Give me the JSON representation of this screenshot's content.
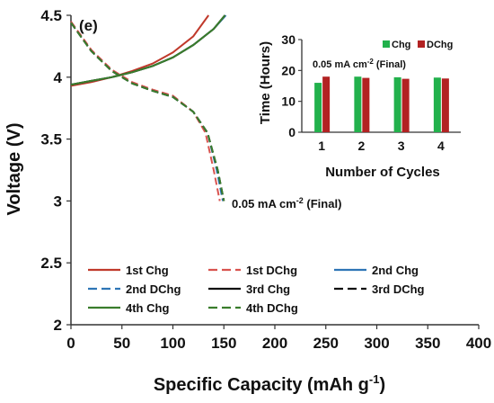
{
  "chart_data": [
    {
      "type": "line",
      "panel_label": "(e)",
      "xlabel": "Specific Capacity (mAh g",
      "xlabel_sup": "-1",
      "xlabel_end": ")",
      "ylabel": "Voltage  (V)",
      "xlim": [
        0,
        400
      ],
      "ylim": [
        2,
        4.5
      ],
      "x_ticks": [
        "0",
        "50",
        "100",
        "150",
        "200",
        "250",
        "300",
        "350",
        "400"
      ],
      "y_ticks": [
        "2",
        "2.5",
        "3",
        "3.5",
        "4",
        "4.5"
      ],
      "annotation": {
        "prefix": "0.05 mA cm",
        "sup": "-2",
        "suffix": " (Final)"
      },
      "grid": false,
      "legend_position": "bottom-left",
      "series": [
        {
          "name": "1st Chg",
          "color": "#c0392b",
          "dash": "solid",
          "points": [
            [
              0,
              3.93
            ],
            [
              20,
              3.96
            ],
            [
              40,
              4.0
            ],
            [
              60,
              4.05
            ],
            [
              80,
              4.11
            ],
            [
              100,
              4.2
            ],
            [
              120,
              4.33
            ],
            [
              135,
              4.5
            ]
          ]
        },
        {
          "name": "1st DChg",
          "color": "#d9534f",
          "dash": "dashed",
          "points": [
            [
              0,
              4.45
            ],
            [
              20,
              4.22
            ],
            [
              40,
              4.06
            ],
            [
              60,
              3.96
            ],
            [
              80,
              3.9
            ],
            [
              100,
              3.85
            ],
            [
              120,
              3.72
            ],
            [
              132,
              3.55
            ],
            [
              140,
              3.25
            ],
            [
              146,
              3.0
            ]
          ]
        },
        {
          "name": "2nd Chg",
          "color": "#2e75b6",
          "dash": "solid",
          "points": [
            [
              0,
              3.94
            ],
            [
              20,
              3.97
            ],
            [
              40,
              4.0
            ],
            [
              60,
              4.04
            ],
            [
              80,
              4.09
            ],
            [
              100,
              4.16
            ],
            [
              120,
              4.26
            ],
            [
              140,
              4.39
            ],
            [
              152,
              4.5
            ]
          ]
        },
        {
          "name": "2nd DChg",
          "color": "#2e75b6",
          "dash": "dashed",
          "points": [
            [
              0,
              4.44
            ],
            [
              20,
              4.21
            ],
            [
              40,
              4.05
            ],
            [
              60,
              3.95
            ],
            [
              80,
              3.89
            ],
            [
              100,
              3.84
            ],
            [
              120,
              3.72
            ],
            [
              134,
              3.55
            ],
            [
              143,
              3.25
            ],
            [
              149,
              3.0
            ]
          ]
        },
        {
          "name": "3rd Chg",
          "color": "#111111",
          "dash": "solid",
          "points": [
            [
              0,
              3.94
            ],
            [
              20,
              3.97
            ],
            [
              40,
              4.0
            ],
            [
              60,
              4.04
            ],
            [
              80,
              4.09
            ],
            [
              100,
              4.16
            ],
            [
              120,
              4.26
            ],
            [
              140,
              4.39
            ],
            [
              151,
              4.5
            ]
          ]
        },
        {
          "name": "3rd DChg",
          "color": "#111111",
          "dash": "dashed",
          "points": [
            [
              0,
              4.44
            ],
            [
              20,
              4.21
            ],
            [
              40,
              4.05
            ],
            [
              60,
              3.95
            ],
            [
              80,
              3.89
            ],
            [
              100,
              3.84
            ],
            [
              120,
              3.72
            ],
            [
              134,
              3.55
            ],
            [
              144,
              3.25
            ],
            [
              150,
              3.0
            ]
          ]
        },
        {
          "name": "4th Chg",
          "color": "#3a7d2c",
          "dash": "solid",
          "points": [
            [
              0,
              3.94
            ],
            [
              20,
              3.97
            ],
            [
              40,
              4.0
            ],
            [
              60,
              4.04
            ],
            [
              80,
              4.09
            ],
            [
              100,
              4.16
            ],
            [
              120,
              4.26
            ],
            [
              140,
              4.39
            ],
            [
              151,
              4.5
            ]
          ]
        },
        {
          "name": "4th DChg",
          "color": "#3a7d2c",
          "dash": "dashed",
          "points": [
            [
              0,
              4.44
            ],
            [
              20,
              4.21
            ],
            [
              40,
              4.05
            ],
            [
              60,
              3.95
            ],
            [
              80,
              3.89
            ],
            [
              100,
              3.84
            ],
            [
              120,
              3.72
            ],
            [
              134,
              3.55
            ],
            [
              144,
              3.25
            ],
            [
              150,
              3.0
            ]
          ]
        }
      ]
    },
    {
      "type": "bar",
      "inset": true,
      "xlabel": "Number of Cycles",
      "ylabel": "Time (Hours)",
      "ylim": [
        0,
        30
      ],
      "y_ticks": [
        "0",
        "10",
        "20",
        "30"
      ],
      "categories": [
        "1",
        "2",
        "3",
        "4"
      ],
      "annotation": {
        "prefix": "0.05 mA cm",
        "sup": "-2",
        "suffix": " (Final)"
      },
      "legend_position": "top-right",
      "series": [
        {
          "name": "Chg",
          "color": "#22b14c",
          "values": [
            16,
            18,
            17.8,
            17.7
          ]
        },
        {
          "name": "DChg",
          "color": "#b22222",
          "values": [
            18,
            17.6,
            17.3,
            17.4
          ]
        }
      ]
    }
  ]
}
